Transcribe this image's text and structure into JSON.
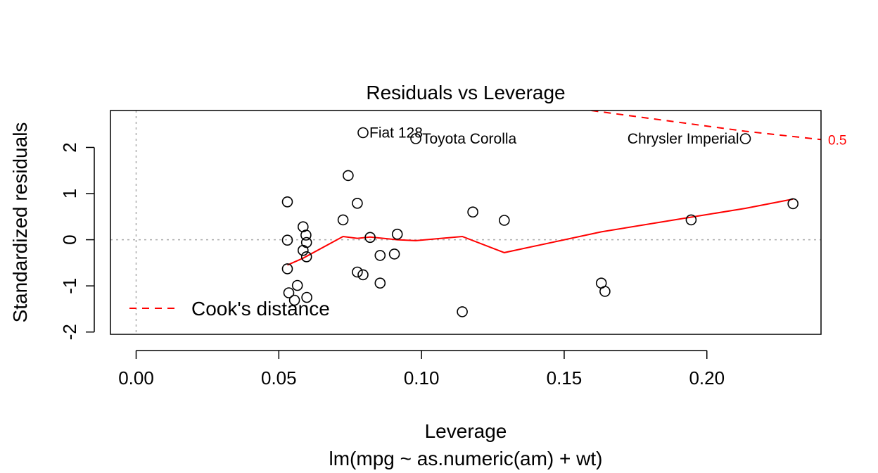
{
  "chart_data": {
    "type": "scatter",
    "title": "Residuals vs Leverage",
    "xlabel": "Leverage",
    "sublabel": "lm(mpg ~ as.numeric(am) + wt)",
    "ylabel": "Standardized residuals",
    "xlim": [
      -0.009,
      0.24
    ],
    "ylim": [
      -2.05,
      2.8
    ],
    "xticks": [
      {
        "value": 0.0,
        "label": "0.00"
      },
      {
        "value": 0.05,
        "label": "0.05"
      },
      {
        "value": 0.1,
        "label": "0.10"
      },
      {
        "value": 0.15,
        "label": "0.15"
      },
      {
        "value": 0.2,
        "label": "0.20"
      }
    ],
    "yticks": [
      {
        "value": -2,
        "label": "-2"
      },
      {
        "value": -1,
        "label": "-1"
      },
      {
        "value": 0,
        "label": "0"
      },
      {
        "value": 1,
        "label": "1"
      },
      {
        "value": 2,
        "label": "2"
      }
    ],
    "points": [
      {
        "x": 0.053,
        "y": 0.82
      },
      {
        "x": 0.053,
        "y": -0.01
      },
      {
        "x": 0.053,
        "y": -0.63
      },
      {
        "x": 0.0535,
        "y": -1.15
      },
      {
        "x": 0.0555,
        "y": -1.31
      },
      {
        "x": 0.0565,
        "y": -0.99
      },
      {
        "x": 0.0585,
        "y": 0.28
      },
      {
        "x": 0.0585,
        "y": -0.23
      },
      {
        "x": 0.0595,
        "y": 0.1
      },
      {
        "x": 0.0597,
        "y": -0.06
      },
      {
        "x": 0.0597,
        "y": -0.37
      },
      {
        "x": 0.0598,
        "y": -1.25
      },
      {
        "x": 0.0725,
        "y": 0.43
      },
      {
        "x": 0.0743,
        "y": 1.39
      },
      {
        "x": 0.0775,
        "y": 0.79
      },
      {
        "x": 0.0775,
        "y": -0.7
      },
      {
        "x": 0.0795,
        "y": -0.76
      },
      {
        "x": 0.0795,
        "y": 2.32
      },
      {
        "x": 0.082,
        "y": 0.05
      },
      {
        "x": 0.0855,
        "y": -0.34
      },
      {
        "x": 0.0855,
        "y": -0.94
      },
      {
        "x": 0.0905,
        "y": -0.31
      },
      {
        "x": 0.0915,
        "y": 0.12
      },
      {
        "x": 0.098,
        "y": 2.19
      },
      {
        "x": 0.1143,
        "y": -1.56
      },
      {
        "x": 0.118,
        "y": 0.6
      },
      {
        "x": 0.129,
        "y": 0.42
      },
      {
        "x": 0.163,
        "y": -0.94
      },
      {
        "x": 0.1643,
        "y": -1.12
      },
      {
        "x": 0.1945,
        "y": 0.43
      },
      {
        "x": 0.2135,
        "y": 2.19
      },
      {
        "x": 0.2302,
        "y": 0.78
      }
    ],
    "point_labels": [
      {
        "text": "Fiat 128",
        "x": 0.0795,
        "y": 2.32,
        "anchor": "start"
      },
      {
        "text": "Toyota Corolla",
        "x": 0.098,
        "y": 2.19,
        "anchor": "start"
      },
      {
        "text": "Chrysler Imperial",
        "x": 0.2135,
        "y": 2.19,
        "anchor": "end"
      }
    ],
    "smooth_line": {
      "color": "#ff0000",
      "x": [
        0.053,
        0.0585,
        0.0725,
        0.0775,
        0.082,
        0.0915,
        0.098,
        0.1143,
        0.129,
        0.163,
        0.1945,
        0.2135,
        0.2302
      ],
      "y": [
        -0.55,
        -0.4,
        0.07,
        0.03,
        0.06,
        0.0,
        -0.02,
        0.07,
        -0.28,
        0.17,
        0.49,
        0.68,
        0.88
      ]
    },
    "cooks_distance_line": {
      "color": "#ff0000",
      "x": [
        0.1595,
        0.2135,
        0.24
      ],
      "y": [
        2.8,
        2.35,
        2.17
      ],
      "label": "0.5"
    },
    "reference_lines": {
      "h": 0,
      "v": 0,
      "color": "#aaaaaa"
    },
    "legend": {
      "position": "bottom-left",
      "entries": [
        {
          "label": "Cook's distance",
          "color": "#ff0000",
          "linestyle": "dashed"
        }
      ]
    },
    "grid": false
  }
}
